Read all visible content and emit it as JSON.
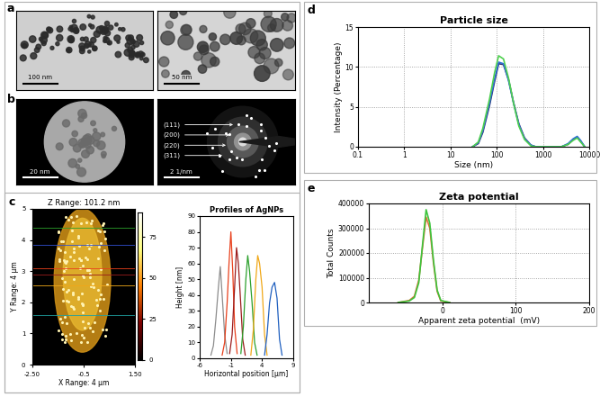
{
  "images": [
    {
      "panel": "a",
      "scale_bar": "100 nm"
    },
    {
      "scale_bar": "50 nm"
    },
    {
      "panel": "b",
      "scale_bar": "20 nm"
    },
    {
      "scale_bar": "2 1/nm",
      "ring_labels": [
        "(111)",
        "(200)",
        "(220)",
        "(311)"
      ]
    },
    {
      "panel": "c",
      "title": "Z Range: 101.2 nm",
      "xlabel": "X Range: 4 μm",
      "ylabel": "Y Range: 4 μm",
      "xlim": [
        -2.5,
        1.5
      ],
      "xticks": [
        {
          "value": -2.5,
          "label": "-2.50"
        },
        -0.5,
        {
          "value": 1.5,
          "label": "1.50"
        }
      ],
      "ylim": [
        0,
        5
      ],
      "yticks": [
        0,
        1,
        2,
        3,
        4,
        5
      ],
      "colorbar_range": [
        0,
        90
      ],
      "colorbar_ticks": [
        0,
        25,
        50,
        75
      ]
    }
  ],
  "chart_data": [
    {
      "type": "line",
      "title": "Profiles of AgNPs",
      "xlabel": "Horizontal position [μm]",
      "ylabel": "Height [nm]",
      "xlim": [
        -6,
        9
      ],
      "xticks": [
        -6,
        -1,
        4,
        9
      ],
      "ylim": [
        0,
        90
      ],
      "yticks": [
        0,
        10,
        20,
        30,
        40,
        50,
        60,
        70,
        80,
        90
      ],
      "series": [
        {
          "color": "#8c8c8c",
          "x": [
            -4.2,
            -3.8,
            -3.4,
            -3.0,
            -2.7,
            -2.4,
            -2.0,
            -1.6
          ],
          "values": [
            2,
            8,
            25,
            45,
            58,
            40,
            15,
            3
          ]
        },
        {
          "color": "#e8401c",
          "x": [
            -2.4,
            -2.0,
            -1.6,
            -1.3,
            -1.0,
            -0.7,
            -0.4,
            0.0
          ],
          "values": [
            2,
            10,
            35,
            60,
            80,
            55,
            20,
            3
          ]
        },
        {
          "color": "#9b1c1c",
          "x": [
            -1.2,
            -0.8,
            -0.4,
            -0.1,
            0.2,
            0.5,
            0.9,
            1.3
          ],
          "values": [
            3,
            15,
            45,
            70,
            60,
            40,
            12,
            2
          ]
        },
        {
          "color": "#2ca02c",
          "x": [
            0.6,
            1.0,
            1.4,
            1.7,
            2.0,
            2.4,
            2.8,
            3.2
          ],
          "values": [
            3,
            20,
            50,
            65,
            55,
            35,
            10,
            2
          ]
        },
        {
          "color": "#f0a818",
          "x": [
            2.2,
            2.6,
            3.0,
            3.3,
            3.6,
            4.0,
            4.4,
            4.8
          ],
          "values": [
            2,
            18,
            50,
            65,
            60,
            45,
            15,
            2
          ]
        },
        {
          "color": "#1f5fbf",
          "x": [
            4.4,
            4.8,
            5.2,
            5.6,
            6.0,
            6.4,
            6.8,
            7.2
          ],
          "values": [
            2,
            15,
            35,
            45,
            48,
            38,
            12,
            2
          ]
        }
      ]
    },
    {
      "type": "line",
      "panel": "d",
      "title": "Particle size",
      "xlabel": "Size (nm)",
      "ylabel": "Intensity (Percentage)",
      "log": "x",
      "grid": true,
      "xlim": [
        0.1,
        10000
      ],
      "xticks": [
        0.1,
        1,
        10,
        100,
        1000,
        10000
      ],
      "ylim": [
        0,
        15
      ],
      "yticks": [
        0,
        5,
        10,
        15
      ],
      "x": [
        30,
        40,
        50,
        70,
        90,
        110,
        140,
        180,
        230,
        300,
        400,
        550,
        700,
        2500,
        3500,
        4500,
        5500,
        6500,
        8000
      ],
      "series": [
        {
          "color": "#2b2b6b",
          "values": [
            0,
            0.4,
            1.8,
            5.2,
            8.2,
            10.4,
            10.3,
            8.4,
            5.6,
            2.9,
            1.1,
            0.2,
            0,
            0,
            0.3,
            0.9,
            1.2,
            0.7,
            0
          ]
        },
        {
          "color": "#2f6fd6",
          "values": [
            0,
            0.5,
            2.0,
            5.5,
            8.5,
            10.6,
            10.4,
            8.3,
            5.5,
            2.8,
            1.0,
            0.2,
            0,
            0,
            0.4,
            1.0,
            1.3,
            0.8,
            0
          ]
        },
        {
          "color": "#4fd04f",
          "values": [
            0,
            0.6,
            2.3,
            6.0,
            9.3,
            11.4,
            11.0,
            8.6,
            5.5,
            2.6,
            0.9,
            0.1,
            0,
            0,
            0.3,
            0.8,
            1.1,
            0.6,
            0
          ]
        }
      ]
    },
    {
      "type": "line",
      "panel": "e",
      "title": "Zeta potential",
      "xlabel": "Apparent zeta potential  (mV)",
      "ylabel": "Total Counts",
      "grid": true,
      "xlim": [
        -100,
        200
      ],
      "xticks": [
        0,
        100,
        200
      ],
      "ylim": [
        0,
        400000
      ],
      "yticks": [
        0,
        100000,
        200000,
        300000,
        400000
      ],
      "x": [
        -60,
        -45,
        -38,
        -32,
        -27,
        -22,
        -17,
        -12,
        -7,
        -2,
        10
      ],
      "series": [
        {
          "color": "#e0703a",
          "values": [
            0,
            8000,
            25000,
            90000,
            220000,
            345000,
            300000,
            160000,
            45000,
            6000,
            0
          ]
        },
        {
          "color": "#3cc43c",
          "values": [
            0,
            6000,
            20000,
            80000,
            230000,
            375000,
            320000,
            170000,
            50000,
            8000,
            0
          ]
        }
      ]
    }
  ]
}
